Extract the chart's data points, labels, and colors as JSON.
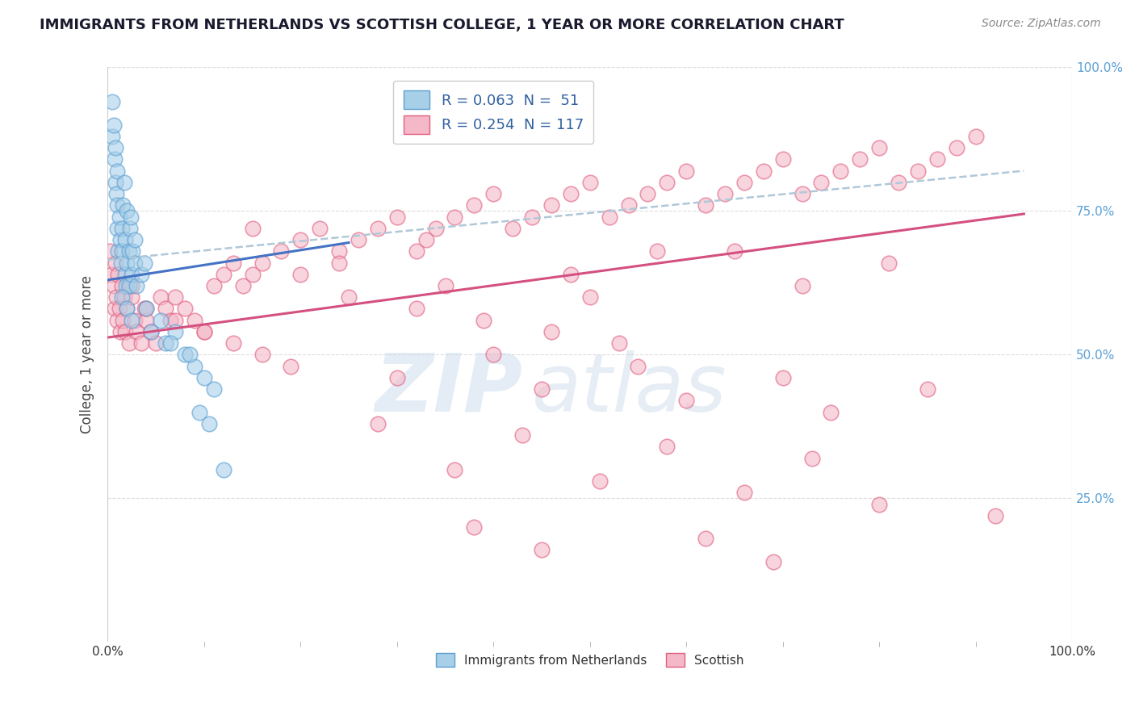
{
  "title": "IMMIGRANTS FROM NETHERLANDS VS SCOTTISH COLLEGE, 1 YEAR OR MORE CORRELATION CHART",
  "source": "Source: ZipAtlas.com",
  "ylabel": "College, 1 year or more",
  "watermark": "ZIPatlas",
  "xlim": [
    0.0,
    1.0
  ],
  "ylim": [
    0.0,
    1.0
  ],
  "xtick_labels": [
    "0.0%",
    "100.0%"
  ],
  "ytick_labels": [
    "25.0%",
    "50.0%",
    "75.0%",
    "100.0%"
  ],
  "ytick_values": [
    0.25,
    0.5,
    0.75,
    1.0
  ],
  "legend_label1": "Immigrants from Netherlands",
  "legend_label2": "Scottish",
  "color_blue": "#a8cfe8",
  "color_pink": "#f4b8c8",
  "edge_blue": "#5b9fd4",
  "edge_pink": "#e06080",
  "line_blue": "#4472c4",
  "line_pink": "#d45080",
  "line_dashed_color": "#b0c8d8",
  "source_color": "#888888",
  "grid_color": "#dddddd",
  "grid_style": "--",
  "blue_points_x": [
    0.005,
    0.007,
    0.008,
    0.009,
    0.01,
    0.01,
    0.01,
    0.011,
    0.012,
    0.013,
    0.014,
    0.015,
    0.015,
    0.016,
    0.017,
    0.018,
    0.018,
    0.019,
    0.02,
    0.02,
    0.022,
    0.022,
    0.023,
    0.024,
    0.025,
    0.026,
    0.028,
    0.028,
    0.03,
    0.035,
    0.038,
    0.005,
    0.006,
    0.008,
    0.04,
    0.055,
    0.06,
    0.07,
    0.08,
    0.09,
    0.1,
    0.11,
    0.015,
    0.02,
    0.025,
    0.045,
    0.065,
    0.085,
    0.095,
    0.105,
    0.12
  ],
  "blue_points_y": [
    0.88,
    0.84,
    0.8,
    0.78,
    0.76,
    0.72,
    0.82,
    0.68,
    0.74,
    0.7,
    0.66,
    0.72,
    0.68,
    0.76,
    0.8,
    0.7,
    0.64,
    0.62,
    0.75,
    0.66,
    0.68,
    0.62,
    0.72,
    0.74,
    0.64,
    0.68,
    0.66,
    0.7,
    0.62,
    0.64,
    0.66,
    0.94,
    0.9,
    0.86,
    0.58,
    0.56,
    0.52,
    0.54,
    0.5,
    0.48,
    0.46,
    0.44,
    0.6,
    0.58,
    0.56,
    0.54,
    0.52,
    0.5,
    0.4,
    0.38,
    0.3
  ],
  "pink_points_x": [
    0.002,
    0.004,
    0.006,
    0.007,
    0.008,
    0.009,
    0.01,
    0.011,
    0.012,
    0.013,
    0.015,
    0.016,
    0.017,
    0.018,
    0.02,
    0.022,
    0.025,
    0.028,
    0.03,
    0.035,
    0.038,
    0.04,
    0.045,
    0.05,
    0.055,
    0.06,
    0.065,
    0.07,
    0.08,
    0.09,
    0.1,
    0.11,
    0.12,
    0.13,
    0.14,
    0.15,
    0.16,
    0.18,
    0.2,
    0.22,
    0.24,
    0.26,
    0.28,
    0.3,
    0.32,
    0.34,
    0.36,
    0.38,
    0.4,
    0.42,
    0.44,
    0.46,
    0.48,
    0.5,
    0.52,
    0.54,
    0.56,
    0.58,
    0.6,
    0.62,
    0.64,
    0.66,
    0.68,
    0.7,
    0.72,
    0.74,
    0.76,
    0.78,
    0.8,
    0.82,
    0.84,
    0.86,
    0.88,
    0.9,
    0.025,
    0.04,
    0.07,
    0.1,
    0.13,
    0.16,
    0.19,
    0.25,
    0.32,
    0.39,
    0.46,
    0.53,
    0.2,
    0.35,
    0.5,
    0.65,
    0.3,
    0.45,
    0.6,
    0.75,
    0.4,
    0.55,
    0.7,
    0.85,
    0.28,
    0.43,
    0.58,
    0.73,
    0.36,
    0.51,
    0.66,
    0.8,
    0.92,
    0.24,
    0.48,
    0.72,
    0.33,
    0.57,
    0.81,
    0.15,
    0.38,
    0.62,
    0.45,
    0.69
  ],
  "pink_points_y": [
    0.68,
    0.64,
    0.62,
    0.58,
    0.66,
    0.6,
    0.56,
    0.64,
    0.58,
    0.54,
    0.62,
    0.56,
    0.6,
    0.54,
    0.58,
    0.52,
    0.6,
    0.56,
    0.54,
    0.52,
    0.58,
    0.56,
    0.54,
    0.52,
    0.6,
    0.58,
    0.56,
    0.6,
    0.58,
    0.56,
    0.54,
    0.62,
    0.64,
    0.66,
    0.62,
    0.64,
    0.66,
    0.68,
    0.7,
    0.72,
    0.68,
    0.7,
    0.72,
    0.74,
    0.68,
    0.72,
    0.74,
    0.76,
    0.78,
    0.72,
    0.74,
    0.76,
    0.78,
    0.8,
    0.74,
    0.76,
    0.78,
    0.8,
    0.82,
    0.76,
    0.78,
    0.8,
    0.82,
    0.84,
    0.78,
    0.8,
    0.82,
    0.84,
    0.86,
    0.8,
    0.82,
    0.84,
    0.86,
    0.88,
    0.62,
    0.58,
    0.56,
    0.54,
    0.52,
    0.5,
    0.48,
    0.6,
    0.58,
    0.56,
    0.54,
    0.52,
    0.64,
    0.62,
    0.6,
    0.68,
    0.46,
    0.44,
    0.42,
    0.4,
    0.5,
    0.48,
    0.46,
    0.44,
    0.38,
    0.36,
    0.34,
    0.32,
    0.3,
    0.28,
    0.26,
    0.24,
    0.22,
    0.66,
    0.64,
    0.62,
    0.7,
    0.68,
    0.66,
    0.72,
    0.2,
    0.18,
    0.16,
    0.14
  ],
  "blue_line_x": [
    0.0,
    0.25
  ],
  "blue_line_y": [
    0.63,
    0.695
  ],
  "pink_line_x": [
    0.0,
    0.95
  ],
  "pink_line_y": [
    0.53,
    0.745
  ],
  "dashed_line_x": [
    0.0,
    0.95
  ],
  "dashed_line_y": [
    0.665,
    0.82
  ],
  "xtick_minor_count": 9,
  "title_fontsize": 13,
  "source_fontsize": 10,
  "axis_fontsize": 11
}
